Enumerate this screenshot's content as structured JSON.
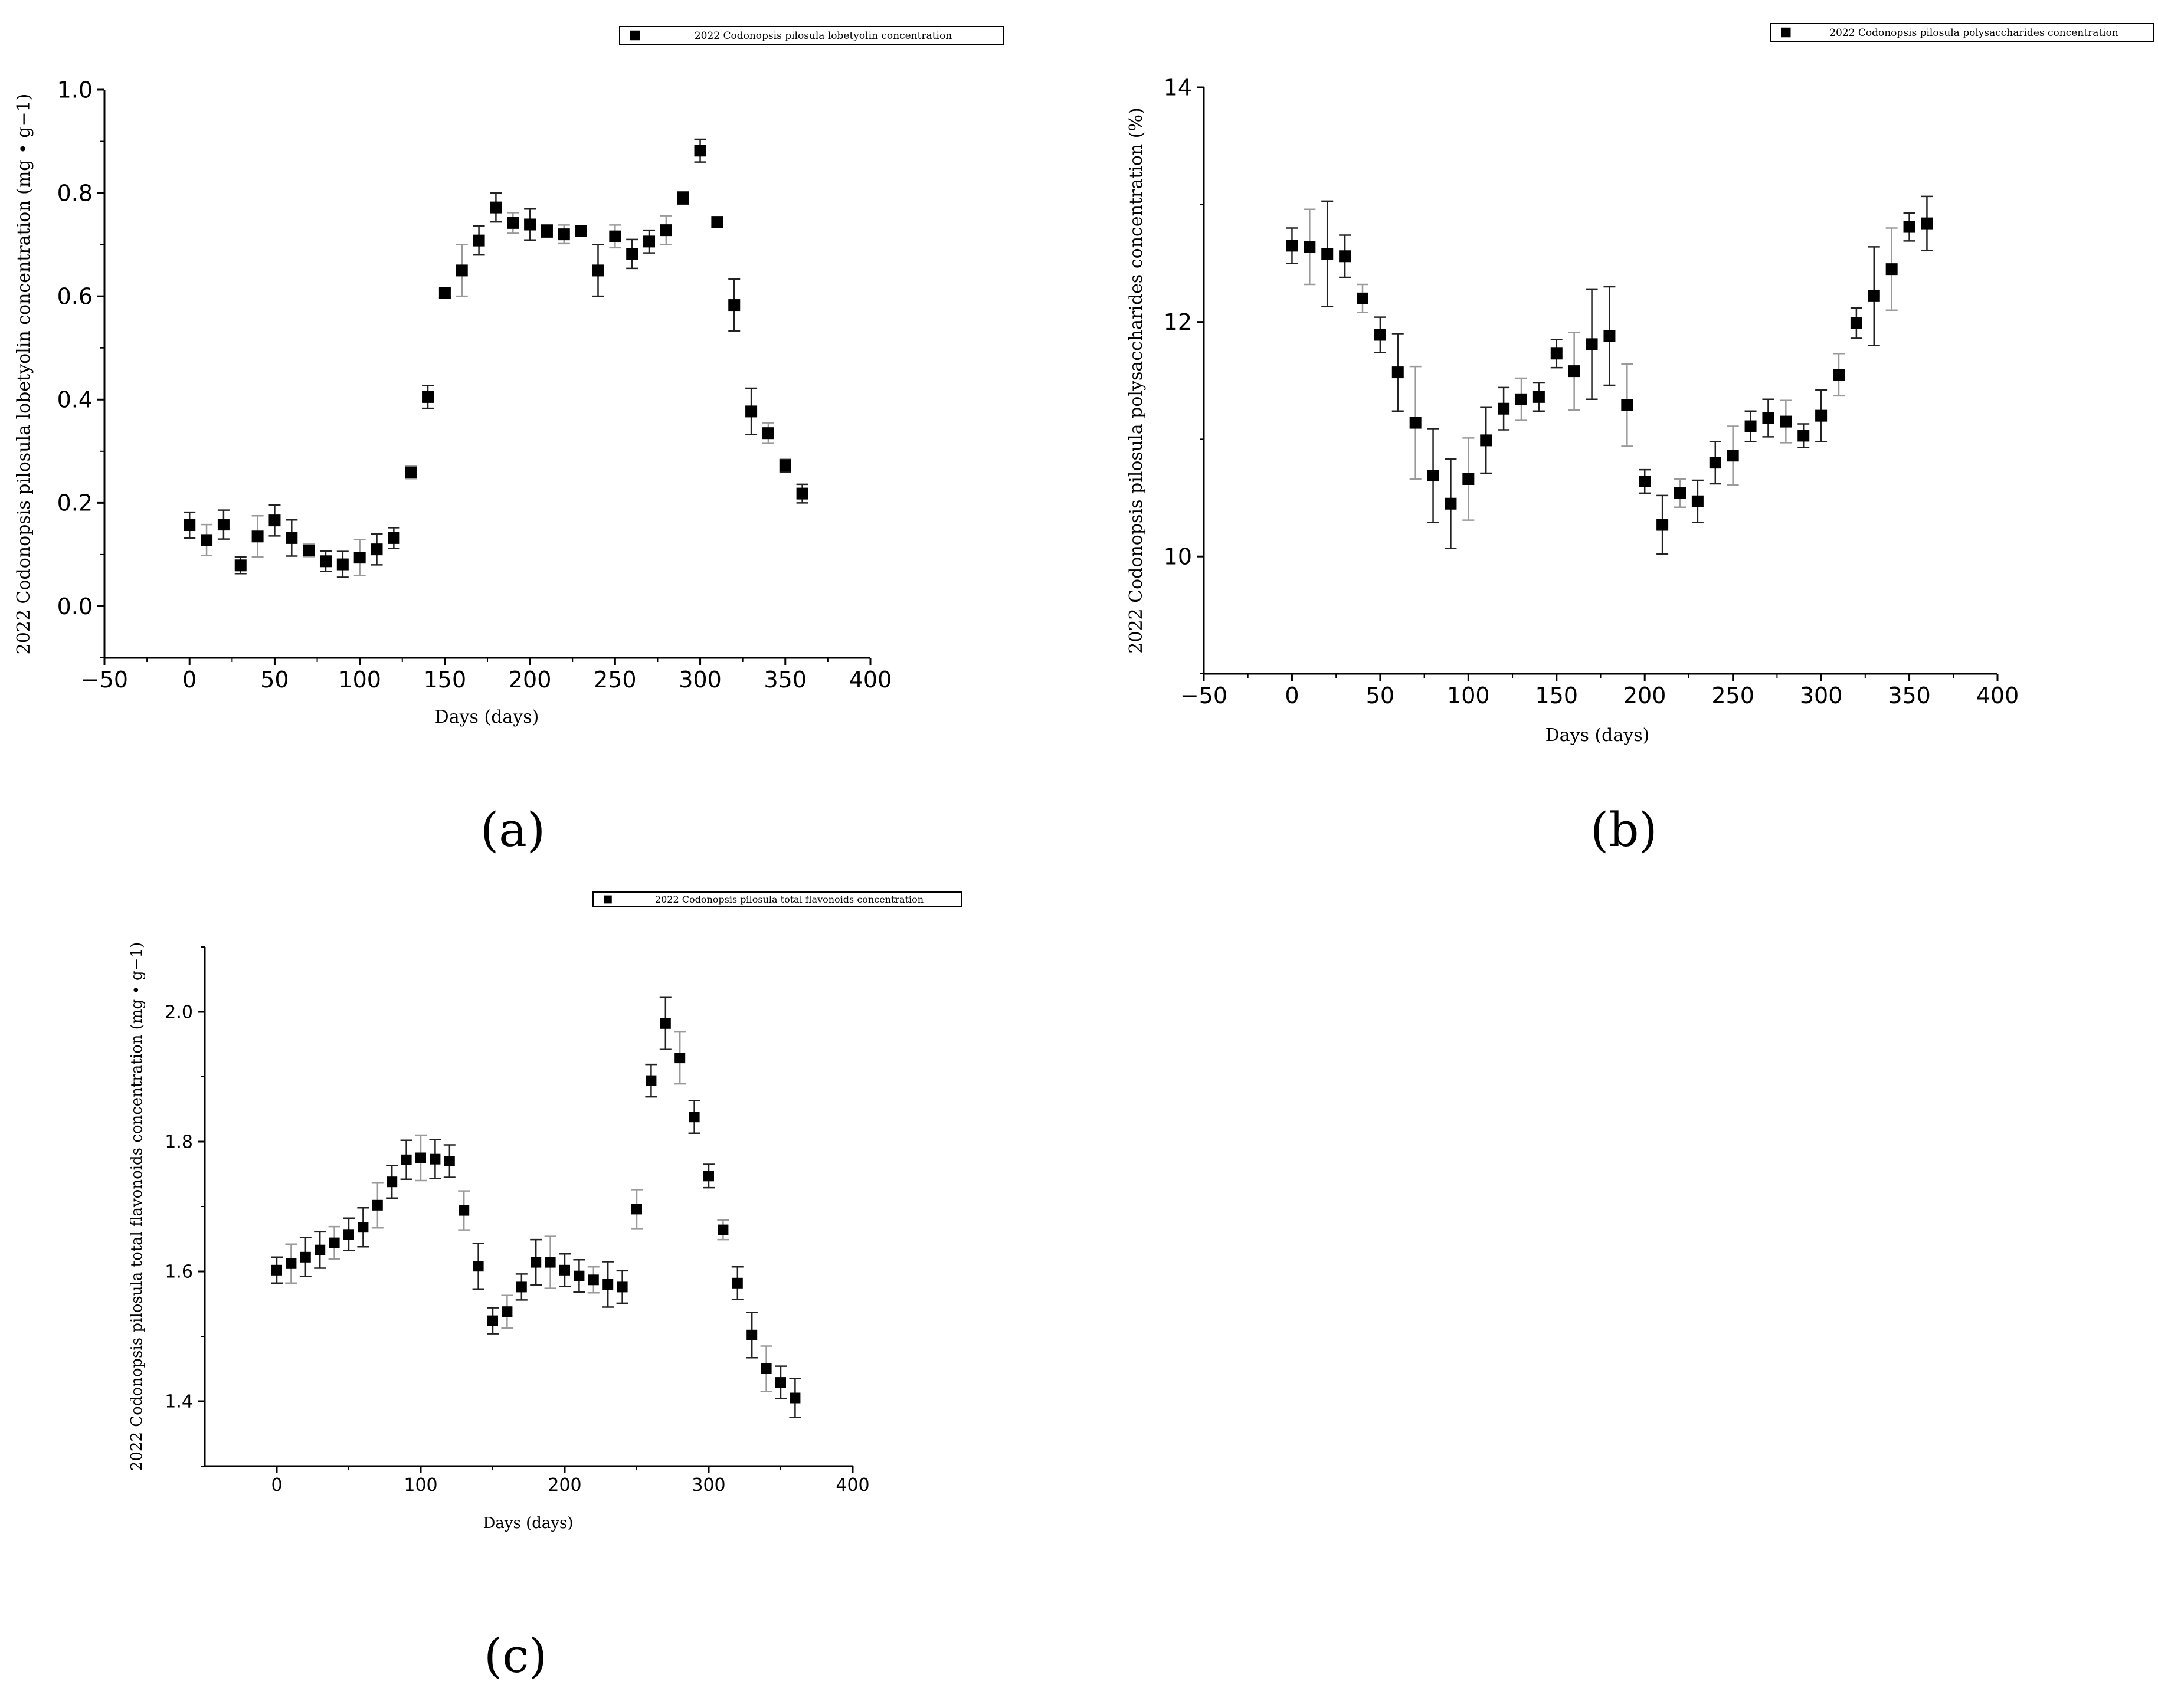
{
  "panels": [
    {
      "label": "(a)",
      "chart_data": {
        "type": "scatter",
        "title": "",
        "xlabel": "Days (days)",
        "ylabel": "2022 Codonopsis pilosula lobetyolin concentration (mg • g−1)",
        "legend": "2022 Codonopsis pilosula lobetyolin concentration",
        "legend_position": "top-right",
        "xlim": [
          -50,
          400
        ],
        "ylim": [
          -0.1,
          1.0
        ],
        "x_ticks": [
          -50,
          0,
          50,
          100,
          150,
          200,
          250,
          300,
          350,
          400
        ],
        "x_tick_labels": [
          "−50",
          "0",
          "50",
          "100",
          "150",
          "200",
          "250",
          "300",
          "350",
          "400"
        ],
        "y_ticks": [
          0.0,
          0.2,
          0.4,
          0.6,
          0.8,
          1.0
        ],
        "y_tick_labels": [
          "0.0",
          "0.2",
          "0.4",
          "0.6",
          "0.8",
          "1.0"
        ],
        "grid": false,
        "series": [
          {
            "name": "2022 Codonopsis pilosula lobetyolin concentration",
            "x": [
              0,
              10,
              20,
              30,
              40,
              50,
              60,
              70,
              80,
              90,
              100,
              110,
              120,
              130,
              140,
              150,
              160,
              170,
              180,
              190,
              200,
              210,
              220,
              230,
              240,
              250,
              260,
              270,
              280,
              290,
              300,
              310,
              320,
              330,
              340,
              350,
              360
            ],
            "y": [
              0.157,
              0.128,
              0.158,
              0.079,
              0.135,
              0.166,
              0.132,
              0.108,
              0.087,
              0.081,
              0.094,
              0.11,
              0.132,
              0.259,
              0.405,
              0.606,
              0.65,
              0.708,
              0.772,
              0.742,
              0.739,
              0.726,
              0.72,
              0.726,
              0.65,
              0.716,
              0.682,
              0.706,
              0.728,
              0.79,
              0.882,
              0.744,
              0.583,
              0.377,
              0.335,
              0.272,
              0.218
            ],
            "err": [
              0.025,
              0.03,
              0.028,
              0.016,
              0.04,
              0.03,
              0.035,
              0.012,
              0.02,
              0.025,
              0.035,
              0.03,
              0.02,
              0.012,
              0.022,
              0.008,
              0.05,
              0.028,
              0.028,
              0.02,
              0.03,
              0.012,
              0.018,
              0.008,
              0.05,
              0.022,
              0.028,
              0.022,
              0.028,
              0.012,
              0.022,
              0.008,
              0.05,
              0.045,
              0.02,
              0.012,
              0.018
            ]
          }
        ]
      }
    },
    {
      "label": "(b)",
      "chart_data": {
        "type": "scatter",
        "title": "",
        "xlabel": "Days (days)",
        "ylabel": "2022 Codonopsis pilosula polysaccharides concentration (%)",
        "legend": "2022 Codonopsis pilosula polysaccharides concentration",
        "legend_position": "top-right",
        "xlim": [
          -50,
          400
        ],
        "ylim": [
          9.0,
          14.0
        ],
        "x_ticks": [
          -50,
          0,
          50,
          100,
          150,
          200,
          250,
          300,
          350,
          400
        ],
        "x_tick_labels": [
          "−50",
          "0",
          "50",
          "100",
          "150",
          "200",
          "250",
          "300",
          "350",
          "400"
        ],
        "y_ticks": [
          10,
          12,
          14
        ],
        "y_tick_labels": [
          "10",
          "12",
          "14"
        ],
        "grid": false,
        "series": [
          {
            "name": "2022 Codonopsis pilosula polysaccharides concentration",
            "x": [
              0,
              10,
              20,
              30,
              40,
              50,
              60,
              70,
              80,
              90,
              100,
              110,
              120,
              130,
              140,
              150,
              160,
              170,
              180,
              190,
              200,
              210,
              220,
              230,
              240,
              250,
              260,
              270,
              280,
              290,
              300,
              310,
              320,
              330,
              340,
              350,
              360
            ],
            "y": [
              12.65,
              12.64,
              12.58,
              12.56,
              12.2,
              11.89,
              11.57,
              11.14,
              10.69,
              10.45,
              10.66,
              10.99,
              11.26,
              11.34,
              11.36,
              11.73,
              11.58,
              11.81,
              11.88,
              11.29,
              10.64,
              10.27,
              10.54,
              10.47,
              10.8,
              10.86,
              11.11,
              11.18,
              11.15,
              11.03,
              11.2,
              11.55,
              11.99,
              12.22,
              12.45,
              12.81,
              12.84
            ],
            "err": [
              0.15,
              0.32,
              0.45,
              0.18,
              0.12,
              0.15,
              0.33,
              0.48,
              0.4,
              0.38,
              0.35,
              0.28,
              0.18,
              0.18,
              0.12,
              0.12,
              0.33,
              0.47,
              0.42,
              0.35,
              0.1,
              0.25,
              0.12,
              0.18,
              0.18,
              0.25,
              0.13,
              0.16,
              0.18,
              0.1,
              0.22,
              0.18,
              0.13,
              0.42,
              0.35,
              0.12,
              0.23
            ]
          }
        ]
      }
    },
    {
      "label": "(c)",
      "chart_data": {
        "type": "scatter",
        "title": "",
        "xlabel": "Days (days)",
        "ylabel": "2022 Codonopsis pilosula total flavonoids concentration (mg • g−1)",
        "legend": "2022 Codonopsis pilosula total flavonoids concentration",
        "legend_position": "top-right",
        "xlim": [
          -50,
          400
        ],
        "ylim": [
          1.3,
          2.1
        ],
        "x_ticks": [
          0,
          100,
          200,
          300,
          400
        ],
        "x_tick_labels": [
          "0",
          "100",
          "200",
          "300",
          "400"
        ],
        "y_ticks": [
          1.4,
          1.6,
          1.8,
          2.0
        ],
        "y_tick_labels": [
          "1.4",
          "1.6",
          "1.8",
          "2.0"
        ],
        "grid": false,
        "series": [
          {
            "name": "2022 Codonopsis pilosula total flavonoids concentration",
            "x": [
              0,
              10,
              20,
              30,
              40,
              50,
              60,
              70,
              80,
              90,
              100,
              110,
              120,
              130,
              140,
              150,
              160,
              170,
              180,
              190,
              200,
              210,
              220,
              230,
              240,
              250,
              260,
              270,
              280,
              290,
              300,
              310,
              320,
              330,
              340,
              350,
              360
            ],
            "y": [
              1.602,
              1.612,
              1.622,
              1.633,
              1.644,
              1.657,
              1.668,
              1.702,
              1.738,
              1.772,
              1.775,
              1.773,
              1.77,
              1.694,
              1.608,
              1.524,
              1.538,
              1.576,
              1.614,
              1.614,
              1.602,
              1.593,
              1.587,
              1.58,
              1.576,
              1.696,
              1.894,
              1.982,
              1.929,
              1.838,
              1.747,
              1.664,
              1.582,
              1.502,
              1.45,
              1.429,
              1.405
            ],
            "err": [
              0.02,
              0.03,
              0.03,
              0.028,
              0.025,
              0.025,
              0.03,
              0.035,
              0.025,
              0.03,
              0.035,
              0.03,
              0.025,
              0.03,
              0.035,
              0.02,
              0.025,
              0.02,
              0.035,
              0.04,
              0.025,
              0.025,
              0.02,
              0.035,
              0.025,
              0.03,
              0.025,
              0.04,
              0.04,
              0.025,
              0.018,
              0.015,
              0.025,
              0.035,
              0.035,
              0.025,
              0.03
            ]
          }
        ]
      }
    }
  ]
}
